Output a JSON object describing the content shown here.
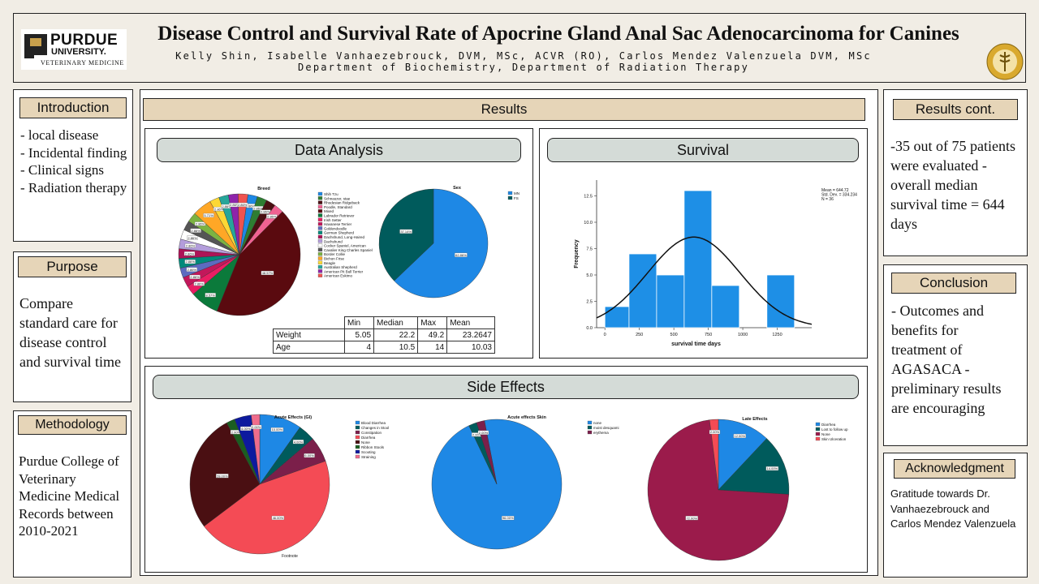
{
  "header": {
    "logo_line1": "PURDUE",
    "logo_line2": "UNIVERSITY.",
    "logo_line3": "VETERINARY MEDICINE",
    "title": "Disease Control and Survival Rate of Apocrine Gland Anal Sac Adenocarcinoma for Canines",
    "authors": "Kelly Shin, Isabelle Vanhaezebrouck, DVM, MSc, ACVR (RO), Carlos Mendez Valenzuela DVM, MSc",
    "department": "Department of Biochemistry, Department of Radiation Therapy"
  },
  "introduction": {
    "heading": "Introduction",
    "lines": [
      "-  local disease",
      "- Incidental finding",
      "- Clinical signs",
      "- Radiation therapy"
    ]
  },
  "purpose": {
    "heading": "Purpose",
    "text": "Compare standard care for disease control and survival time"
  },
  "methodology": {
    "heading": "Methodology",
    "text": "Purdue College of Veterinary Medicine Medical Records between 2010-2021"
  },
  "results": {
    "heading": "Results",
    "data_analysis_heading": "Data Analysis",
    "survival_heading": "Survival",
    "side_effects_heading": "Side Effects",
    "table": {
      "headers": [
        "",
        "Min",
        "Median",
        "Max",
        "Mean"
      ],
      "rows": [
        [
          "Weight",
          "5.05",
          "22.2",
          "49.2",
          "23.2647"
        ],
        [
          "Age",
          "4",
          "10.5",
          "14",
          "10.03"
        ]
      ]
    }
  },
  "results_cont": {
    "heading": "Results cont.",
    "text": "-35 out of 75 patients were evaluated - overall median survival time = 644 days"
  },
  "conclusion": {
    "heading": "Conclusion",
    "text": "- Outcomes and benefits for treatment of AGASACA - preliminary results are encouraging"
  },
  "acknowledgment": {
    "heading": "Acknowledgment",
    "text": "Gratitude towards Dr. Vanhaezebrouck and Carlos Mendez Valenzuela"
  },
  "chart_data": [
    {
      "type": "pie",
      "title": "Breed",
      "labels": [
        "Shih Tzu",
        "Schnauzer, stae",
        "Rhodesian Ridgeback",
        "Poodle, Standard",
        "Mixed",
        "Labrador Retriever",
        "Irish Setter",
        "Havanese Terrier",
        "Goldendoodle",
        "German Shepherd",
        "Dachshund, Long-Haired",
        "Dachshund",
        "Cocker Spaniel, American",
        "Cavalier King Charles Spaniel",
        "Border Collie",
        "Bichon Frise",
        "Beagle",
        "Australian Shepherd",
        "American Pit Bull Terrier",
        "American Eskimo"
      ],
      "values": [
        2.86,
        2.86,
        2.86,
        2.86,
        48.57,
        8.57,
        2.86,
        2.86,
        2.86,
        2.86,
        2.86,
        2.86,
        2.86,
        2.86,
        2.86,
        5.71,
        2.86,
        2.86,
        2.86,
        2.86
      ],
      "colors": [
        "#1e88e5",
        "#2e7d32",
        "#4a0f12",
        "#f06292",
        "#5a0a0f",
        "#0b7a3b",
        "#e91e63",
        "#c2185b",
        "#5c6bc0",
        "#00897b",
        "#ad1457",
        "#b39ddb",
        "#ffffff",
        "#555555",
        "#7cb342",
        "#ffa726",
        "#fdd835",
        "#26a69a",
        "#8e24aa",
        "#ef5350"
      ],
      "data_labels": [
        "2.86%",
        "2.86%",
        "2.86%",
        "2.86%",
        "48.57%",
        "8.57%",
        "2.86%",
        "2.86%",
        "2.86%",
        "2.86%",
        "2.86%",
        "2.86%",
        "2.86%",
        "2.86%",
        "2.86%",
        "5.71%",
        "2.86%",
        "2.86%",
        "2.86%",
        "2.86%"
      ]
    },
    {
      "type": "pie",
      "title": "Sex",
      "labels": [
        "MN",
        "FS"
      ],
      "values": [
        62.86,
        37.14
      ],
      "colors": [
        "#1e88e5",
        "#005b5c"
      ],
      "data_labels": [
        "62.86%",
        "37.14%"
      ]
    },
    {
      "type": "bar",
      "title": "",
      "xlabel": "survival time days",
      "ylabel": "Frequency",
      "bins": [
        [
          0,
          175
        ],
        [
          175,
          375
        ],
        [
          375,
          575
        ],
        [
          575,
          775
        ],
        [
          775,
          975
        ],
        [
          975,
          1175
        ],
        [
          1175,
          1375
        ]
      ],
      "values": [
        2,
        7,
        5,
        13,
        4,
        0,
        5
      ],
      "xticks": [
        "0",
        "250",
        "500",
        "750",
        "1000",
        "1250"
      ],
      "yticks": [
        "0.0",
        "2.5",
        "5.0",
        "7.5",
        "10.0",
        "12.5"
      ],
      "xlim": [
        -60,
        1500
      ],
      "ylim": [
        0,
        14
      ],
      "normal_curve": {
        "mean": 644.72,
        "sd": 334.234,
        "n": 36
      },
      "stats_text": [
        "Mean = 644.72",
        "Std. Dev. = 334.234",
        "N = 36"
      ]
    },
    {
      "type": "pie",
      "title": "Acute Effects (GI)",
      "labels": [
        "Blood Diarrhea",
        "Changes in Stool",
        "Constipation",
        "Diarrhea",
        "None",
        "Ribbon Stools",
        "Scooting",
        "Straining"
      ],
      "values": [
        10,
        4,
        6,
        46,
        28,
        2,
        4,
        2
      ],
      "colors": [
        "#1e88e5",
        "#005b5c",
        "#7b1f4a",
        "#f44b55",
        "#4a0f12",
        "#1b5e20",
        "#0d1a9e",
        "#ef6c8c"
      ],
      "data_labels": [
        "10.00%",
        "4.00%",
        "6.00%",
        "46.00%",
        "28.00%",
        "2.00%",
        "4.00%",
        "2.00%"
      ],
      "footnote": "Footnote"
    },
    {
      "type": "pie",
      "title": "Acute effects Skin",
      "labels": [
        "none",
        "moist desquami",
        "erythema"
      ],
      "values": [
        96,
        2,
        2
      ],
      "colors": [
        "#1e88e5",
        "#005b5c",
        "#7b1f4a"
      ],
      "data_labels": [
        "96.00%",
        "2.00%",
        "2.00%"
      ]
    },
    {
      "type": "pie",
      "title": "Late Effects",
      "labels": [
        "Diarrhea",
        "Lost to follow up",
        "None",
        "Skin Ulceration"
      ],
      "values": [
        12,
        14,
        72,
        2
      ],
      "colors": [
        "#1e88e5",
        "#005b5c",
        "#9b1b4b",
        "#f44b55"
      ],
      "data_labels": [
        "12.00%",
        "14.00%",
        "72.00%",
        "2.00%"
      ]
    }
  ]
}
